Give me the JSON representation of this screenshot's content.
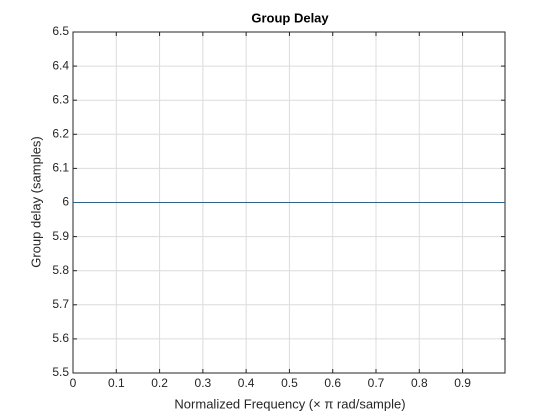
{
  "chart_data": {
    "type": "line",
    "title": "Group Delay",
    "x_label": "Normalized  Frequency    (× π  rad/sample)",
    "y_label": "Group delay (samples)",
    "x": [
      0,
      0.998
    ],
    "values": [
      6,
      6
    ],
    "color": "#0072bd",
    "xlim": [
      0,
      0.998
    ],
    "xticks": [
      0,
      0.1,
      0.2,
      0.3,
      0.4,
      0.5,
      0.6,
      0.7,
      0.8,
      0.9
    ],
    "ylim": [
      5.5,
      6.5
    ],
    "yticks": [
      5.5,
      5.6,
      5.7,
      5.8,
      5.9,
      6,
      6.1,
      6.2,
      6.3,
      6.4,
      6.5
    ],
    "grid": true
  }
}
